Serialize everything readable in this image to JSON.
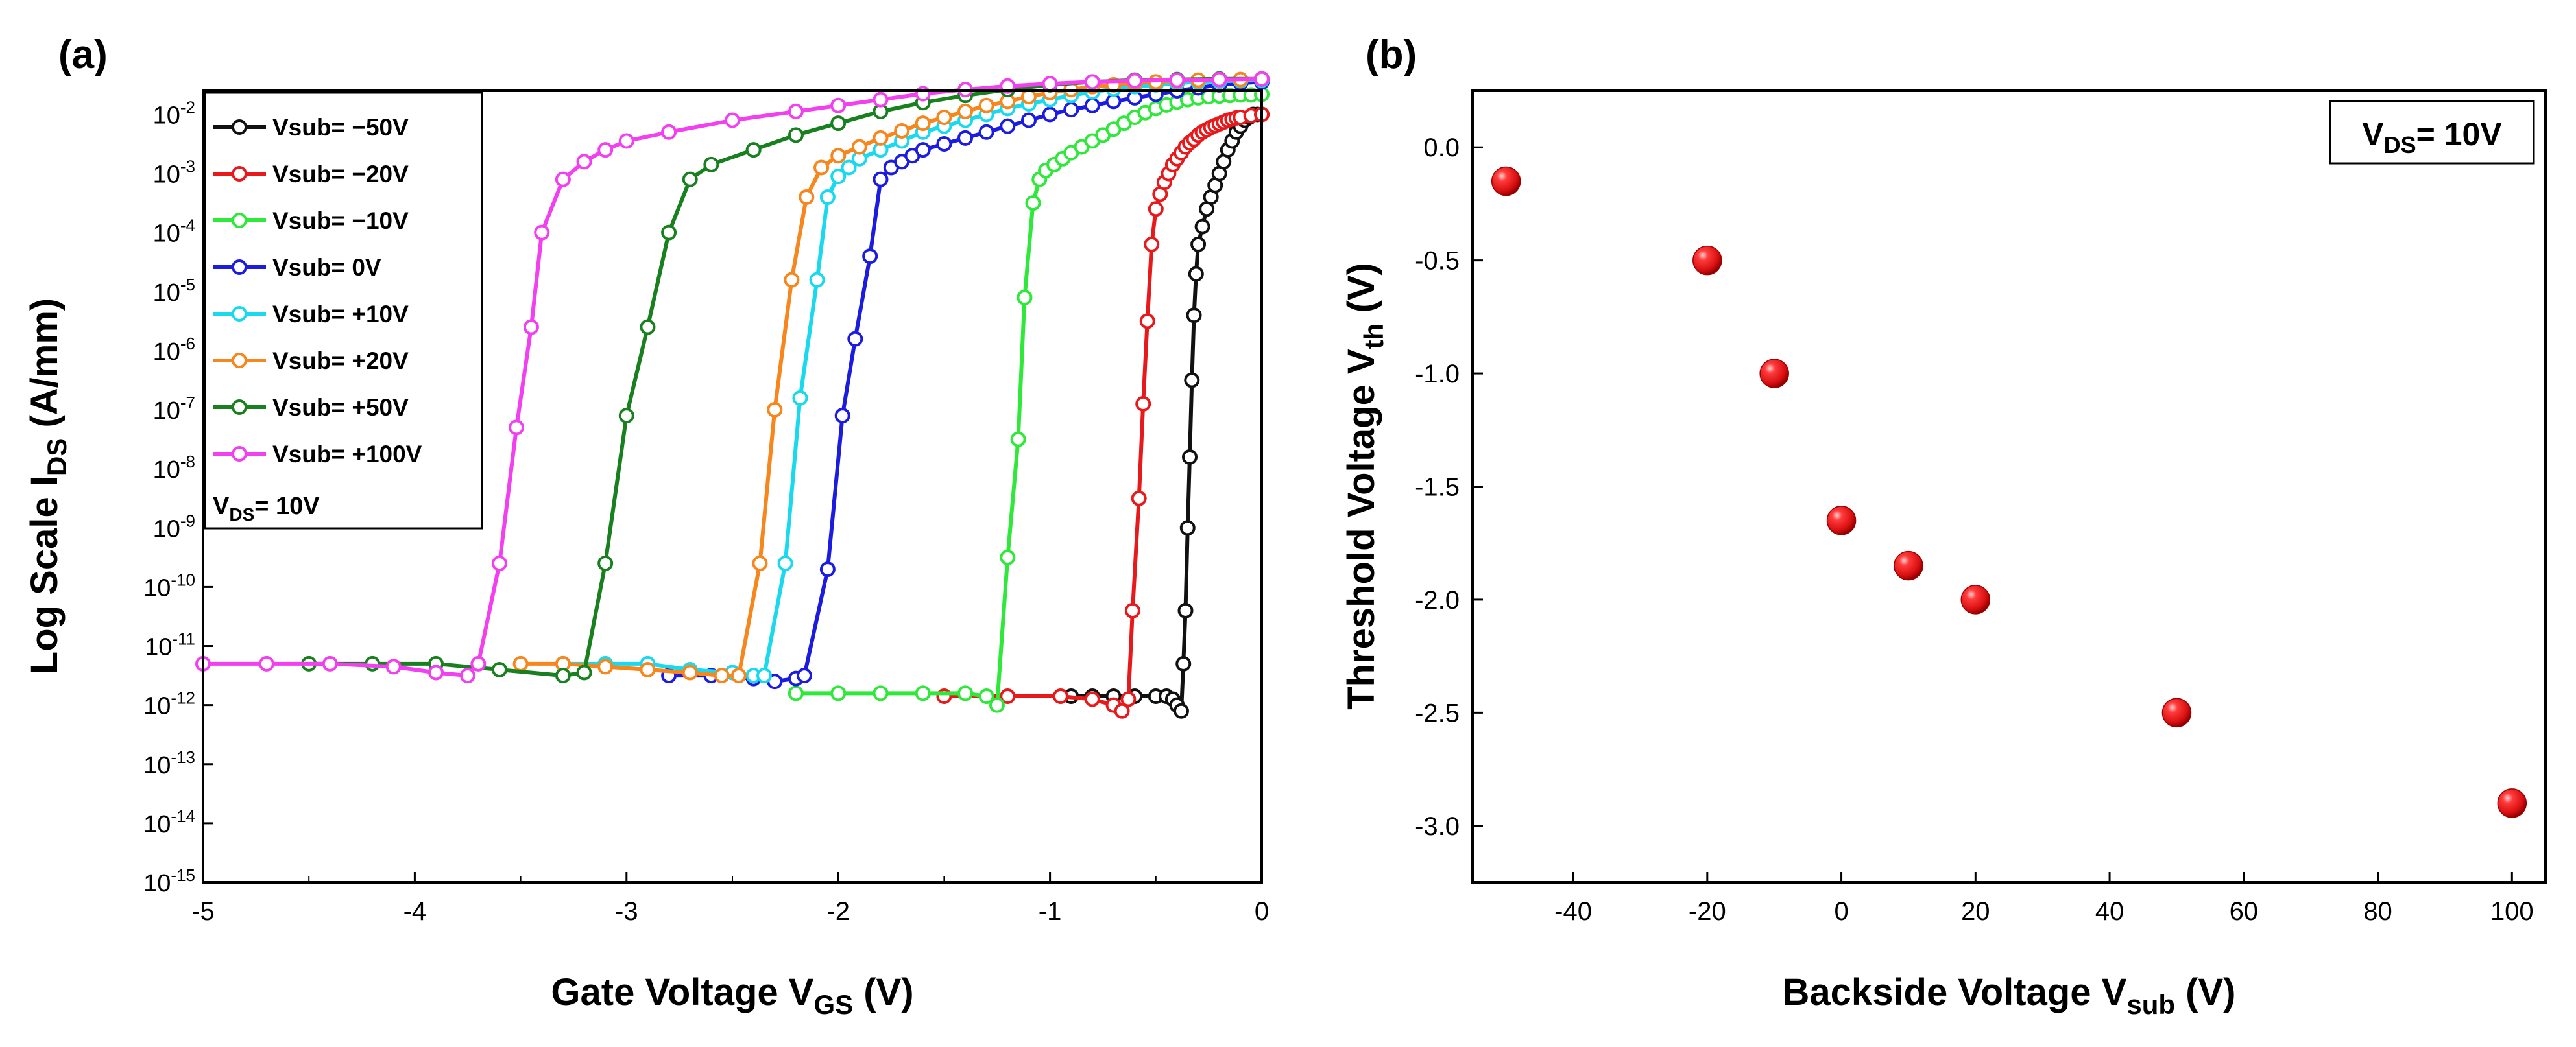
{
  "chart_data": [
    {
      "panel_label": "(a)",
      "type": "line",
      "xlabel_main": "Gate Voltage V",
      "xlabel_sub": "GS",
      "xlabel_tail": " (V)",
      "ylabel_main": "Log Scale I",
      "ylabel_sub": "DS",
      "ylabel_tail": " (A/mm)",
      "y_scale": "log",
      "xlim": [
        -5,
        0
      ],
      "ylim_exp": [
        -15,
        -1.6
      ],
      "x_ticks": [
        "-5",
        "-4",
        "-3",
        "-2",
        "-1",
        "0"
      ],
      "y_tick_exponents": [
        "-2",
        "-3",
        "-4",
        "-5",
        "-6",
        "-7",
        "-8",
        "-9",
        "-10",
        "-11",
        "-12",
        "-13",
        "-14",
        "-15"
      ],
      "y_tick_base": "10",
      "legend_location": "top-left",
      "legend_note_main": "V",
      "legend_note_sub": "DS",
      "legend_note_tail": "= 10V",
      "series": [
        {
          "name": "Vsub= −50V",
          "color": "#111111",
          "x": [
            -0.9,
            -0.8,
            -0.7,
            -0.6,
            -0.5,
            -0.45,
            -0.42,
            -0.4,
            -0.38,
            -0.37,
            -0.36,
            -0.35,
            -0.34,
            -0.33,
            -0.32,
            -0.31,
            -0.3,
            -0.28,
            -0.26,
            -0.24,
            -0.22,
            -0.2,
            -0.18,
            -0.16,
            -0.14,
            -0.12,
            -0.1,
            -0.08,
            -0.06,
            -0.04,
            -0.02,
            0
          ],
          "logy": [
            -11.85,
            -11.85,
            -11.85,
            -11.85,
            -11.85,
            -11.85,
            -11.9,
            -12,
            -12.1,
            -11.3,
            -10.4,
            -9,
            -7.8,
            -6.5,
            -5.4,
            -4.7,
            -4.2,
            -3.9,
            -3.6,
            -3.4,
            -3.2,
            -3.0,
            -2.8,
            -2.6,
            -2.45,
            -2.3,
            -2.2,
            -2.1,
            -2.05,
            -2.0,
            -2.0,
            -2.0
          ]
        },
        {
          "name": "Vsub= −20V",
          "color": "#e8191b",
          "x": [
            -1.5,
            -1.2,
            -0.95,
            -0.8,
            -0.7,
            -0.66,
            -0.63,
            -0.61,
            -0.58,
            -0.56,
            -0.54,
            -0.52,
            -0.5,
            -0.48,
            -0.46,
            -0.44,
            -0.42,
            -0.4,
            -0.38,
            -0.36,
            -0.34,
            -0.32,
            -0.3,
            -0.28,
            -0.26,
            -0.24,
            -0.22,
            -0.2,
            -0.18,
            -0.16,
            -0.14,
            -0.12,
            -0.1,
            -0.05,
            0
          ],
          "logy": [
            -11.85,
            -11.85,
            -11.85,
            -11.9,
            -12,
            -12.1,
            -11.9,
            -10.4,
            -8.5,
            -6.9,
            -5.5,
            -4.2,
            -3.6,
            -3.35,
            -3.15,
            -3.0,
            -2.85,
            -2.75,
            -2.65,
            -2.55,
            -2.48,
            -2.42,
            -2.35,
            -2.3,
            -2.26,
            -2.22,
            -2.19,
            -2.16,
            -2.13,
            -2.1,
            -2.08,
            -2.06,
            -2.05,
            -2.02,
            -2.0
          ]
        },
        {
          "name": "Vsub= −10V",
          "color": "#2ee83a",
          "x": [
            -2.2,
            -2.0,
            -1.8,
            -1.6,
            -1.4,
            -1.3,
            -1.25,
            -1.2,
            -1.15,
            -1.12,
            -1.08,
            -1.05,
            -1.02,
            -0.98,
            -0.94,
            -0.9,
            -0.85,
            -0.8,
            -0.75,
            -0.7,
            -0.65,
            -0.6,
            -0.55,
            -0.5,
            -0.45,
            -0.4,
            -0.35,
            -0.3,
            -0.25,
            -0.2,
            -0.15,
            -0.1,
            -0.05,
            0
          ],
          "logy": [
            -11.8,
            -11.8,
            -11.8,
            -11.8,
            -11.8,
            -11.85,
            -12,
            -9.5,
            -7.5,
            -5.1,
            -3.5,
            -3.1,
            -2.95,
            -2.85,
            -2.75,
            -2.65,
            -2.55,
            -2.45,
            -2.35,
            -2.25,
            -2.15,
            -2.05,
            -1.97,
            -1.9,
            -1.84,
            -1.79,
            -1.75,
            -1.72,
            -1.7,
            -1.69,
            -1.68,
            -1.67,
            -1.67,
            -1.66
          ]
        },
        {
          "name": "Vsub= 0V",
          "color": "#1c1ce0",
          "x": [
            -2.8,
            -2.6,
            -2.4,
            -2.3,
            -2.2,
            -2.16,
            -2.05,
            -1.98,
            -1.92,
            -1.85,
            -1.8,
            -1.75,
            -1.7,
            -1.65,
            -1.6,
            -1.5,
            -1.4,
            -1.3,
            -1.2,
            -1.1,
            -1.0,
            -0.9,
            -0.8,
            -0.7,
            -0.6,
            -0.5,
            -0.4,
            -0.3,
            -0.2,
            -0.1,
            0
          ],
          "logy": [
            -11.5,
            -11.5,
            -11.55,
            -11.6,
            -11.55,
            -11.5,
            -9.7,
            -7.1,
            -5.8,
            -4.4,
            -3.1,
            -2.9,
            -2.8,
            -2.7,
            -2.6,
            -2.5,
            -2.4,
            -2.3,
            -2.2,
            -2.1,
            -2.0,
            -1.92,
            -1.85,
            -1.78,
            -1.72,
            -1.66,
            -1.6,
            -1.55,
            -1.5,
            -1.47,
            -1.45
          ]
        },
        {
          "name": "Vsub= +10V",
          "color": "#19d9ef",
          "x": [
            -3.3,
            -3.1,
            -2.9,
            -2.7,
            -2.5,
            -2.4,
            -2.35,
            -2.25,
            -2.18,
            -2.1,
            -2.05,
            -2.0,
            -1.95,
            -1.9,
            -1.8,
            -1.7,
            -1.6,
            -1.5,
            -1.4,
            -1.3,
            -1.2,
            -1.1,
            -1.0,
            -0.9,
            -0.8,
            -0.7,
            -0.6,
            -0.5,
            -0.4,
            -0.3,
            -0.2,
            -0.1,
            0
          ],
          "logy": [
            -11.3,
            -11.3,
            -11.3,
            -11.4,
            -11.45,
            -11.5,
            -11.5,
            -9.6,
            -6.8,
            -4.8,
            -3.4,
            -3.05,
            -2.9,
            -2.75,
            -2.6,
            -2.45,
            -2.3,
            -2.2,
            -2.1,
            -2.0,
            -1.9,
            -1.82,
            -1.75,
            -1.68,
            -1.62,
            -1.57,
            -1.53,
            -1.5,
            -1.47,
            -1.45,
            -1.44,
            -1.43,
            -1.42
          ]
        },
        {
          "name": "Vsub= +20V",
          "color": "#f7861c",
          "x": [
            -3.5,
            -3.3,
            -3.1,
            -2.9,
            -2.7,
            -2.55,
            -2.47,
            -2.37,
            -2.3,
            -2.22,
            -2.15,
            -2.08,
            -2.0,
            -1.9,
            -1.8,
            -1.7,
            -1.6,
            -1.5,
            -1.4,
            -1.3,
            -1.2,
            -1.1,
            -1.0,
            -0.9,
            -0.8,
            -0.7,
            -0.6,
            -0.5,
            -0.4,
            -0.3,
            -0.2,
            -0.1,
            0
          ],
          "logy": [
            -11.3,
            -11.3,
            -11.35,
            -11.4,
            -11.45,
            -11.5,
            -11.5,
            -9.6,
            -7.0,
            -4.8,
            -3.4,
            -2.9,
            -2.7,
            -2.55,
            -2.4,
            -2.28,
            -2.15,
            -2.05,
            -1.95,
            -1.85,
            -1.78,
            -1.7,
            -1.63,
            -1.58,
            -1.53,
            -1.5,
            -1.47,
            -1.45,
            -1.43,
            -1.42,
            -1.41,
            -1.41,
            -1.4
          ]
        },
        {
          "name": "Vsub= +50V",
          "color": "#19801f",
          "x": [
            -4.5,
            -4.2,
            -3.9,
            -3.6,
            -3.3,
            -3.2,
            -3.1,
            -3.0,
            -2.9,
            -2.8,
            -2.7,
            -2.6,
            -2.4,
            -2.2,
            -2.0,
            -1.8,
            -1.6,
            -1.4,
            -1.2,
            -1.0,
            -0.8,
            -0.6,
            -0.4,
            -0.2,
            0
          ],
          "logy": [
            -11.3,
            -11.3,
            -11.3,
            -11.4,
            -11.5,
            -11.45,
            -9.6,
            -7.1,
            -5.6,
            -4.0,
            -3.1,
            -2.85,
            -2.6,
            -2.35,
            -2.15,
            -1.95,
            -1.8,
            -1.68,
            -1.58,
            -1.5,
            -1.45,
            -1.42,
            -1.41,
            -1.4,
            -1.4
          ]
        },
        {
          "name": "Vsub= +100V",
          "color": "#f23ff0",
          "x": [
            -5.0,
            -4.7,
            -4.4,
            -4.1,
            -3.9,
            -3.75,
            -3.7,
            -3.6,
            -3.52,
            -3.45,
            -3.4,
            -3.3,
            -3.2,
            -3.1,
            -3.0,
            -2.8,
            -2.5,
            -2.2,
            -2.0,
            -1.8,
            -1.6,
            -1.4,
            -1.2,
            -1.0,
            -0.8,
            -0.6,
            -0.4,
            -0.2,
            0
          ],
          "logy": [
            -11.3,
            -11.3,
            -11.3,
            -11.35,
            -11.45,
            -11.5,
            -11.3,
            -9.6,
            -7.3,
            -5.6,
            -4.0,
            -3.1,
            -2.8,
            -2.6,
            -2.45,
            -2.3,
            -2.1,
            -1.95,
            -1.85,
            -1.75,
            -1.65,
            -1.58,
            -1.52,
            -1.48,
            -1.45,
            -1.43,
            -1.42,
            -1.41,
            -1.4
          ]
        }
      ]
    },
    {
      "panel_label": "(b)",
      "type": "scatter",
      "xlabel_main": "Backside Voltage V",
      "xlabel_sub": "sub",
      "xlabel_tail": " (V)",
      "ylabel_main": "Threshold Voltage V",
      "ylabel_sub": "th",
      "ylabel_tail": " (V)",
      "xlim": [
        -55,
        105
      ],
      "ylim": [
        -3.25,
        0.25
      ],
      "x_ticks": [
        "-40",
        "-20",
        "0",
        "20",
        "40",
        "60",
        "80",
        "100"
      ],
      "y_ticks": [
        "0.0",
        "-0.5",
        "-1.0",
        "-1.5",
        "-2.0",
        "-2.5",
        "-3.0"
      ],
      "annotation_main": "V",
      "annotation_sub": "DS",
      "annotation_tail": "= 10V",
      "annotation_location": "top-right",
      "marker_color": "#e41a1c",
      "x": [
        -50,
        -20,
        -10,
        0,
        10,
        20,
        50,
        100
      ],
      "y": [
        -0.15,
        -0.5,
        -1.0,
        -1.65,
        -1.85,
        -2.0,
        -2.5,
        -2.9
      ]
    }
  ]
}
